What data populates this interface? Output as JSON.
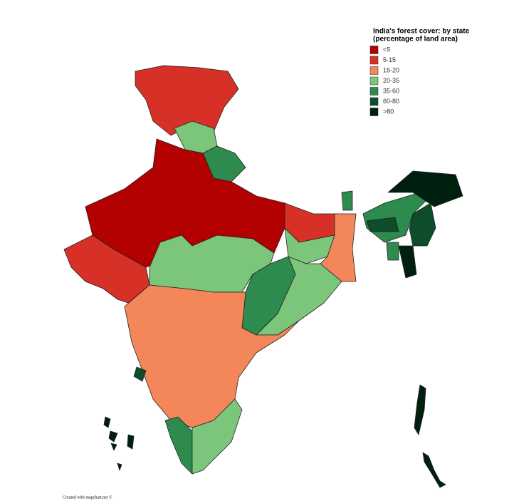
{
  "title": "India's forest cover: by state",
  "subtitle": "(percentage of land area)",
  "legend": [
    {
      "label": "<5",
      "color": "#b30000"
    },
    {
      "label": "5-15",
      "color": "#d73027"
    },
    {
      "label": "15-20",
      "color": "#f4875a"
    },
    {
      "label": "20-35",
      "color": "#7bc67b"
    },
    {
      "label": "35-60",
      "color": "#2e8b4e"
    },
    {
      "label": "60-80",
      "color": "#0e4d2a"
    },
    {
      "label": ">80",
      "color": "#00200f"
    }
  ],
  "credit": "Created with mapchart.net ©"
}
